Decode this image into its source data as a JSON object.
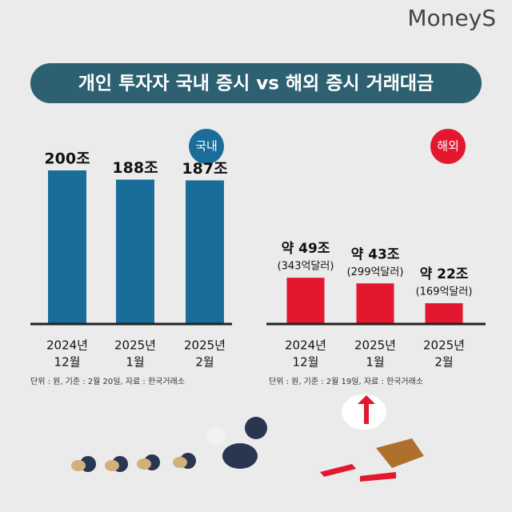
{
  "header": {
    "logo": "MoneyS",
    "title": "개인 투자자 국내 증시 vs  해외 증시 거래대금"
  },
  "chart_data": [
    {
      "type": "bar",
      "badge": "국내",
      "color": "#1b6d99",
      "categories": [
        [
          "2024년",
          "12월"
        ],
        [
          "2025년",
          "1월"
        ],
        [
          "2025년",
          "2월"
        ]
      ],
      "values": [
        200,
        188,
        187
      ],
      "value_labels": [
        "200조",
        "188조",
        "187조"
      ],
      "note": "단위 : 원, 기준 : 2월 20일, 자료 : 한국거래소"
    },
    {
      "type": "bar",
      "badge": "해외",
      "color": "#e3172d",
      "categories": [
        [
          "2024년",
          "12월"
        ],
        [
          "2025년",
          "1월"
        ],
        [
          "2025년",
          "2월"
        ]
      ],
      "values": [
        49,
        43,
        22
      ],
      "value_labels": [
        "약 49조",
        "약 43조",
        "약 22조"
      ],
      "usd_labels": [
        "(343억달러)",
        "(299억달러)",
        "(169억달러)"
      ],
      "note": "단위 : 원, 기준 : 2월 19일, 자료 : 한국거래소"
    }
  ]
}
